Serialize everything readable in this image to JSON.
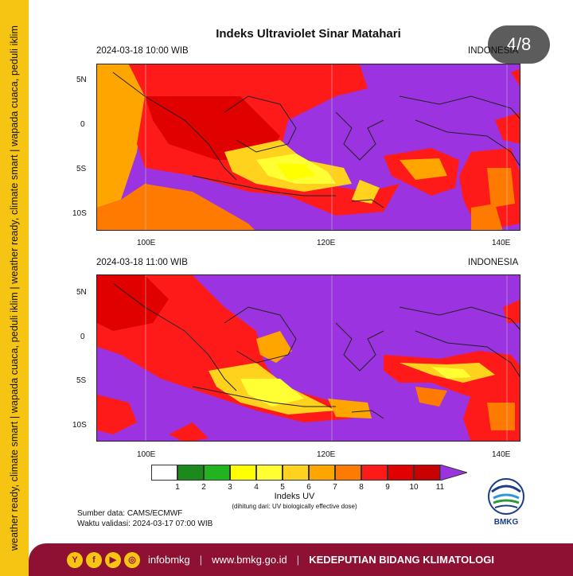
{
  "sidebar": {
    "tagline": "weather ready, climate smart | wapada cuaca, peduli iklim | weather ready, climate smart | wapada cuaca, peduli iklim"
  },
  "title": "Indeks Ultraviolet Sinar Matahari",
  "counter": "4/8",
  "maps": [
    {
      "datetime": "2024-03-18  10:00 WIB",
      "region": "INDONESIA"
    },
    {
      "datetime": "2024-03-18  11:00 WIB",
      "region": "INDONESIA"
    }
  ],
  "axes": {
    "lat_ticks": [
      "5N",
      "0",
      "5S",
      "10S"
    ],
    "lon_ticks": [
      "100E",
      "120E",
      "140E"
    ]
  },
  "colorbar": {
    "labels": [
      "1",
      "2",
      "3",
      "4",
      "5",
      "6",
      "7",
      "8",
      "9",
      "10",
      "11"
    ],
    "colors": [
      "#ffffff",
      "#1a8a1a",
      "#22b41e",
      "#ffff00",
      "#ffff33",
      "#ffd21e",
      "#ffa500",
      "#ff7a00",
      "#ff1a1a",
      "#e10000",
      "#c80000",
      "#9b34e0"
    ],
    "title": "Indeks UV",
    "subtitle": "(dihitung dari: UV biologically effective dose)"
  },
  "source": {
    "data": "Sumber data: CAMS/ECMWF",
    "validity": "Waktu validasi: 2024-03-17 07:00 WIB"
  },
  "logo_text": "BMKG",
  "footer": {
    "social": [
      "Y",
      "f",
      "▶",
      "◎"
    ],
    "handle": "infobmkg",
    "website": "www.bmkg.go.id",
    "division": "KEDEPUTIAN BIDANG KLIMATOLOGI"
  }
}
